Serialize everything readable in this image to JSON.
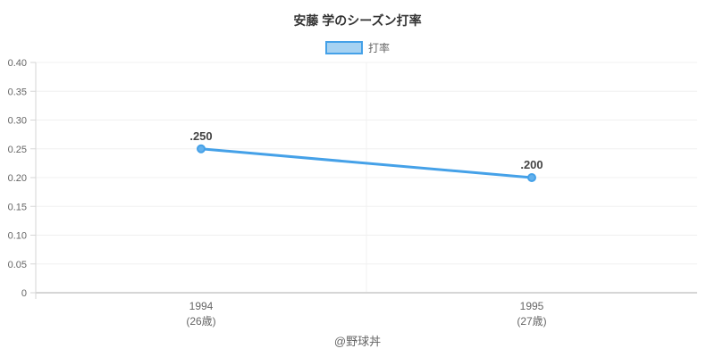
{
  "title": "安藤 学のシーズン打率",
  "legend": {
    "label": "打率",
    "swatch_fill": "#a6d2f2",
    "swatch_border": "#45a1e8"
  },
  "footer": "@野球丼",
  "colors": {
    "line": "#45a1e8",
    "point_fill": "#64b1ec",
    "grid": "#f0f0f0",
    "axis": "#d6d6d6",
    "tick_text": "#666666",
    "point_label": "#444444",
    "title_text": "#333333"
  },
  "chart_data": {
    "type": "line",
    "title": "安藤 学のシーズン打率",
    "categories": [
      "1994",
      "1995"
    ],
    "category_sublabels": [
      "(26歳)",
      "(27歳)"
    ],
    "series": [
      {
        "name": "打率",
        "values": [
          0.25,
          0.2
        ]
      }
    ],
    "point_labels": [
      ".250",
      ".200"
    ],
    "xlabel": "",
    "ylabel": "",
    "ylim": [
      0,
      0.4
    ],
    "ytick_step": 0.05,
    "ytick_labels": [
      "0",
      "0.05",
      "0.10",
      "0.15",
      "0.20",
      "0.25",
      "0.30",
      "0.35",
      "0.40"
    ],
    "grid": true,
    "legend_position": "top"
  }
}
